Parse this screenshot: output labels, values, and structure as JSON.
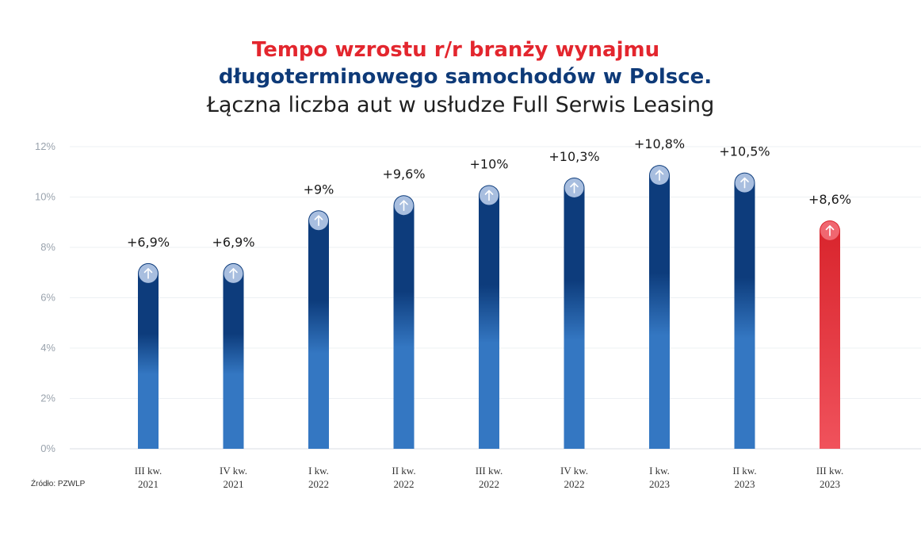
{
  "title": {
    "line1": "Tempo wzrostu r/r branży wynajmu",
    "line2": "długoterminowego samochodów w Polsce.",
    "line3": "Łączna liczba aut w usłudze Full Serwis Leasing"
  },
  "source": "Źródło: PZWLP",
  "colors": {
    "bar_dark": "#0d3c7c",
    "bar_light": "#3477c2",
    "highlight_top": "#d8232b",
    "highlight_bottom": "#f0525c",
    "title_red": "#e3262e",
    "title_blue": "#0e3a78"
  },
  "chart_data": {
    "type": "bar",
    "title": "Tempo wzrostu r/r branży wynajmu długoterminowego samochodów w Polsce. Łączna liczba aut w usłudze Full Serwis Leasing",
    "categories": [
      [
        "III kw.",
        "2021"
      ],
      [
        "IV kw.",
        "2021"
      ],
      [
        "I kw.",
        "2022"
      ],
      [
        "II kw.",
        "2022"
      ],
      [
        "III kw.",
        "2022"
      ],
      [
        "IV kw.",
        "2022"
      ],
      [
        "I kw.",
        "2023"
      ],
      [
        "II kw.",
        "2023"
      ],
      [
        "III kw.",
        "2023"
      ]
    ],
    "values": [
      6.9,
      6.9,
      9,
      9.6,
      10,
      10.3,
      10.8,
      10.5,
      8.6
    ],
    "data_labels": [
      "+6,9%",
      "+6,9%",
      "+9%",
      "+9,6%",
      "+10%",
      "+10,3%",
      "+10,8%",
      "+10,5%",
      "+8,6%"
    ],
    "highlight_index": 8,
    "y_ticks": [
      "0%",
      "2%",
      "4%",
      "6%",
      "8%",
      "10%",
      "12%"
    ],
    "ylim": [
      0,
      12
    ],
    "xlabel": "",
    "ylabel": "",
    "grid": true,
    "legend": "none"
  }
}
